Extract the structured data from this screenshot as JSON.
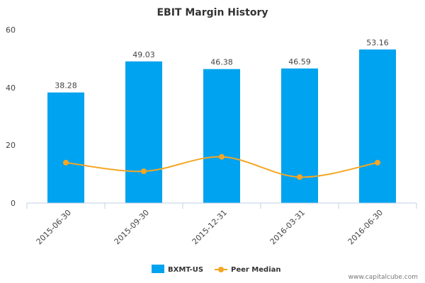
{
  "chart_data": {
    "type": "bar",
    "title": "EBIT Margin History",
    "xlabel": "",
    "ylabel": "",
    "categories": [
      "2015-06-30",
      "2015-09-30",
      "2015-12-31",
      "2016-03-31",
      "2016-06-30"
    ],
    "series": [
      {
        "name": "BXMT-US",
        "type": "bar",
        "color": "#00a3ef",
        "values": [
          38.28,
          49.03,
          46.38,
          46.59,
          53.16
        ],
        "labels": [
          "38.28",
          "49.03",
          "46.38",
          "46.59",
          "53.16"
        ]
      },
      {
        "name": "Peer Median",
        "type": "line",
        "color": "#f5a623",
        "values": [
          14,
          11,
          16,
          9,
          14
        ]
      }
    ],
    "ylim": [
      0,
      60
    ],
    "yticks": [
      "0",
      "20",
      "40",
      "60"
    ],
    "grid": false,
    "legend": "bottom-center"
  },
  "credit": "www.capitalcube.com"
}
